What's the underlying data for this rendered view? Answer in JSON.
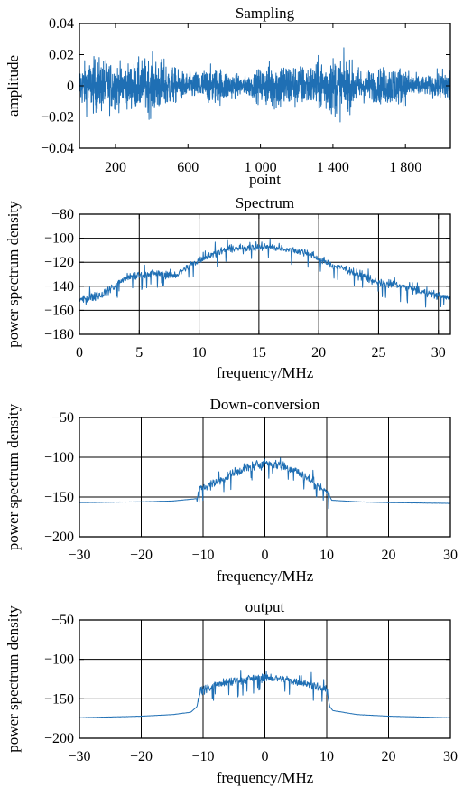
{
  "colors": {
    "trace": "#1f6fb4",
    "axis": "#000000"
  },
  "chart_data": [
    {
      "type": "line",
      "title": "Sampling",
      "xlabel": "point",
      "ylabel": "amplitude",
      "xlim": [
        1,
        2048
      ],
      "ylim": [
        -0.04,
        0.04
      ],
      "grid": false,
      "xticks": [
        200,
        600,
        1000,
        1400,
        1800
      ],
      "xtick_labels": [
        "200",
        "600",
        "1 000",
        "1 400",
        "1 800"
      ],
      "yticks": [
        -0.04,
        -0.02,
        0,
        0.02,
        0.04
      ],
      "ytick_labels": [
        "−0.04",
        "−0.02",
        "0",
        "0.02",
        "0.04"
      ],
      "series": [
        {
          "x_range": [
            1,
            2048
          ],
          "segments": [
            [
              1,
              2048,
              0.026
            ]
          ],
          "noise": 1.0
        }
      ]
    },
    {
      "type": "line",
      "title": "Spectrum",
      "xlabel": "frequency/MHz",
      "ylabel": "power spectrum density",
      "xlim": [
        0,
        31
      ],
      "ylim": [
        -180,
        -80
      ],
      "grid": true,
      "xticks": [
        0,
        5,
        10,
        15,
        20,
        25,
        30
      ],
      "xtick_labels": [
        "0",
        "5",
        "10",
        "15",
        "20",
        "25",
        "30"
      ],
      "yticks": [
        -180,
        -160,
        -140,
        -120,
        -100,
        -80
      ],
      "ytick_labels": [
        "−180",
        "−160",
        "−140",
        "−120",
        "−100",
        "−80"
      ],
      "series": [
        {
          "points": [
            [
              0,
              -152
            ],
            [
              2,
              -146
            ],
            [
              4,
              -133
            ],
            [
              6,
              -129
            ],
            [
              8,
              -131
            ],
            [
              10,
              -118
            ],
            [
              12,
              -110
            ],
            [
              14,
              -108
            ],
            [
              15.5,
              -107
            ],
            [
              17,
              -108
            ],
            [
              19,
              -112
            ],
            [
              21,
              -122
            ],
            [
              23,
              -128
            ],
            [
              25,
              -137
            ],
            [
              27,
              -140
            ],
            [
              29,
              -146
            ],
            [
              31,
              -150
            ]
          ],
          "x_range": [
            0,
            31
          ],
          "noise": 6
        }
      ]
    },
    {
      "type": "line",
      "title": "Down-conversion",
      "xlabel": "frequency/MHz",
      "ylabel": "power spectrum density",
      "xlim": [
        -30,
        30
      ],
      "ylim": [
        -200,
        -50
      ],
      "grid": true,
      "xticks": [
        -30,
        -20,
        -10,
        0,
        10,
        20,
        30
      ],
      "xtick_labels": [
        "−30",
        "−20",
        "−10",
        "0",
        "10",
        "20",
        "30"
      ],
      "yticks": [
        -200,
        -150,
        -100,
        -50
      ],
      "ytick_labels": [
        "−200",
        "−150",
        "−100",
        "−50"
      ],
      "series": [
        {
          "points": [
            [
              -30,
              -157
            ],
            [
              -20,
              -156
            ],
            [
              -15,
              -155
            ],
            [
              -11,
              -152
            ],
            [
              -10.5,
              -140
            ],
            [
              -8,
              -132
            ],
            [
              -5,
              -120
            ],
            [
              -2,
              -111
            ],
            [
              0,
              -108
            ],
            [
              2,
              -109
            ],
            [
              5,
              -117
            ],
            [
              8,
              -132
            ],
            [
              10.2,
              -145
            ],
            [
              10.8,
              -154
            ],
            [
              15,
              -156
            ],
            [
              20,
              -157
            ],
            [
              30,
              -158
            ]
          ],
          "x_range": [
            -30,
            30
          ],
          "noise_range": [
            -11,
            10.5
          ],
          "noise": 10
        }
      ]
    },
    {
      "type": "line",
      "title": "output",
      "xlabel": "frequency/MHz",
      "ylabel": "power spectrum density",
      "xlim": [
        -30,
        30
      ],
      "ylim": [
        -200,
        -50
      ],
      "grid": true,
      "xticks": [
        -30,
        -20,
        -10,
        0,
        10,
        20,
        30
      ],
      "xtick_labels": [
        "−30",
        "−20",
        "−10",
        "0",
        "10",
        "20",
        "30"
      ],
      "yticks": [
        -200,
        -150,
        -100,
        -50
      ],
      "ytick_labels": [
        "−200",
        "−150",
        "−100",
        "−50"
      ],
      "series": [
        {
          "points": [
            [
              -30,
              -174
            ],
            [
              -20,
              -172
            ],
            [
              -15,
              -170
            ],
            [
              -12,
              -167
            ],
            [
              -11,
              -160
            ],
            [
              -10.5,
              -140
            ],
            [
              -8,
              -133
            ],
            [
              -5,
              -128
            ],
            [
              -2,
              -124
            ],
            [
              0,
              -123
            ],
            [
              2,
              -124
            ],
            [
              5,
              -128
            ],
            [
              8,
              -133
            ],
            [
              10,
              -140
            ],
            [
              10.5,
              -160
            ],
            [
              11,
              -165
            ],
            [
              15,
              -170
            ],
            [
              20,
              -172
            ],
            [
              30,
              -174
            ]
          ],
          "x_range": [
            -30,
            30
          ],
          "noise_range": [
            -10.8,
            10.2
          ],
          "noise": 10
        }
      ]
    }
  ]
}
